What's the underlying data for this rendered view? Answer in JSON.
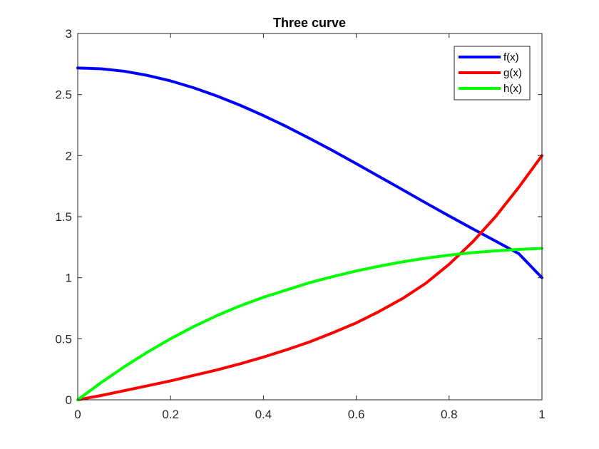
{
  "chart_data": {
    "type": "line",
    "title": "Three curve",
    "xlabel": "",
    "ylabel": "",
    "xlim": [
      0,
      1
    ],
    "ylim": [
      0,
      3
    ],
    "x_ticks": [
      0,
      0.2,
      0.4,
      0.6,
      0.8,
      1
    ],
    "x_tick_labels": [
      "0",
      "0.2",
      "0.4",
      "0.6",
      "0.8",
      "1"
    ],
    "y_ticks": [
      0,
      0.5,
      1,
      1.5,
      2,
      2.5,
      3
    ],
    "y_tick_labels": [
      "0",
      "0.5",
      "1",
      "1.5",
      "2",
      "2.5",
      "3"
    ],
    "grid": false,
    "legend_position": "top-right",
    "x": [
      0,
      0.05,
      0.1,
      0.15,
      0.2,
      0.25,
      0.3,
      0.35,
      0.4,
      0.45,
      0.5,
      0.55,
      0.6,
      0.65,
      0.7,
      0.75,
      0.8,
      0.85,
      0.9,
      0.95,
      1
    ],
    "series": [
      {
        "name": "f(x)",
        "color": "#0000ff",
        "values": [
          2.718,
          2.711,
          2.691,
          2.657,
          2.612,
          2.555,
          2.488,
          2.412,
          2.328,
          2.237,
          2.14,
          2.039,
          1.934,
          1.827,
          1.72,
          1.612,
          1.506,
          1.402,
          1.3,
          1.197,
          1.0
        ]
      },
      {
        "name": "g(x)",
        "color": "#ff0000",
        "values": [
          0.0,
          0.035,
          0.075,
          0.115,
          0.155,
          0.2,
          0.245,
          0.295,
          0.35,
          0.41,
          0.475,
          0.55,
          0.63,
          0.725,
          0.83,
          0.955,
          1.11,
          1.29,
          1.5,
          1.74,
          2.0
        ]
      },
      {
        "name": "h(x)",
        "color": "#00ff00",
        "values": [
          0.0,
          0.14,
          0.27,
          0.39,
          0.5,
          0.6,
          0.69,
          0.77,
          0.84,
          0.9,
          0.96,
          1.01,
          1.055,
          1.095,
          1.13,
          1.16,
          1.185,
          1.205,
          1.22,
          1.232,
          1.24
        ]
      }
    ]
  }
}
